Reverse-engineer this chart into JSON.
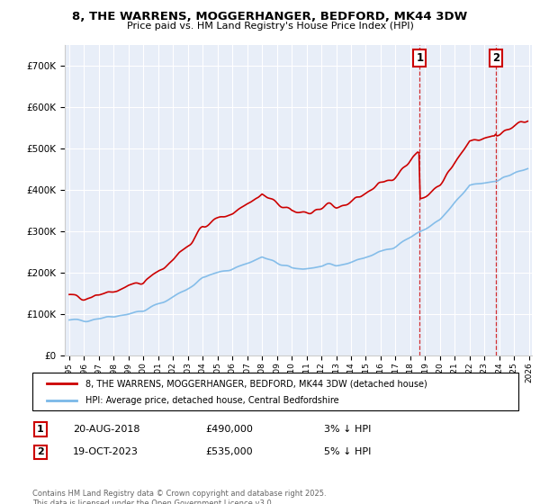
{
  "title_line1": "8, THE WARRENS, MOGGERHANGER, BEDFORD, MK44 3DW",
  "title_line2": "Price paid vs. HM Land Registry's House Price Index (HPI)",
  "legend_label1": "8, THE WARRENS, MOGGERHANGER, BEDFORD, MK44 3DW (detached house)",
  "legend_label2": "HPI: Average price, detached house, Central Bedfordshire",
  "annotation1": {
    "num": "1",
    "date": "20-AUG-2018",
    "price": "£490,000",
    "pct": "3% ↓ HPI"
  },
  "annotation2": {
    "num": "2",
    "date": "19-OCT-2023",
    "price": "£535,000",
    "pct": "5% ↓ HPI"
  },
  "footer": "Contains HM Land Registry data © Crown copyright and database right 2025.\nThis data is licensed under the Open Government Licence v3.0.",
  "hpi_color": "#7ab8e8",
  "price_color": "#cc0000",
  "annotation_line_color": "#cc0000",
  "bg_color": "#e8eef8",
  "grid_color": "#ffffff",
  "ylim": [
    0,
    750000
  ],
  "yticks": [
    0,
    100000,
    200000,
    300000,
    400000,
    500000,
    600000,
    700000
  ],
  "ytick_labels": [
    "£0",
    "£100K",
    "£200K",
    "£300K",
    "£400K",
    "£500K",
    "£600K",
    "£700K"
  ],
  "year_start": 1995,
  "year_end": 2026,
  "sale1_year": 2018.64,
  "sale1_price": 490000,
  "sale2_year": 2023.8,
  "sale2_price": 535000
}
